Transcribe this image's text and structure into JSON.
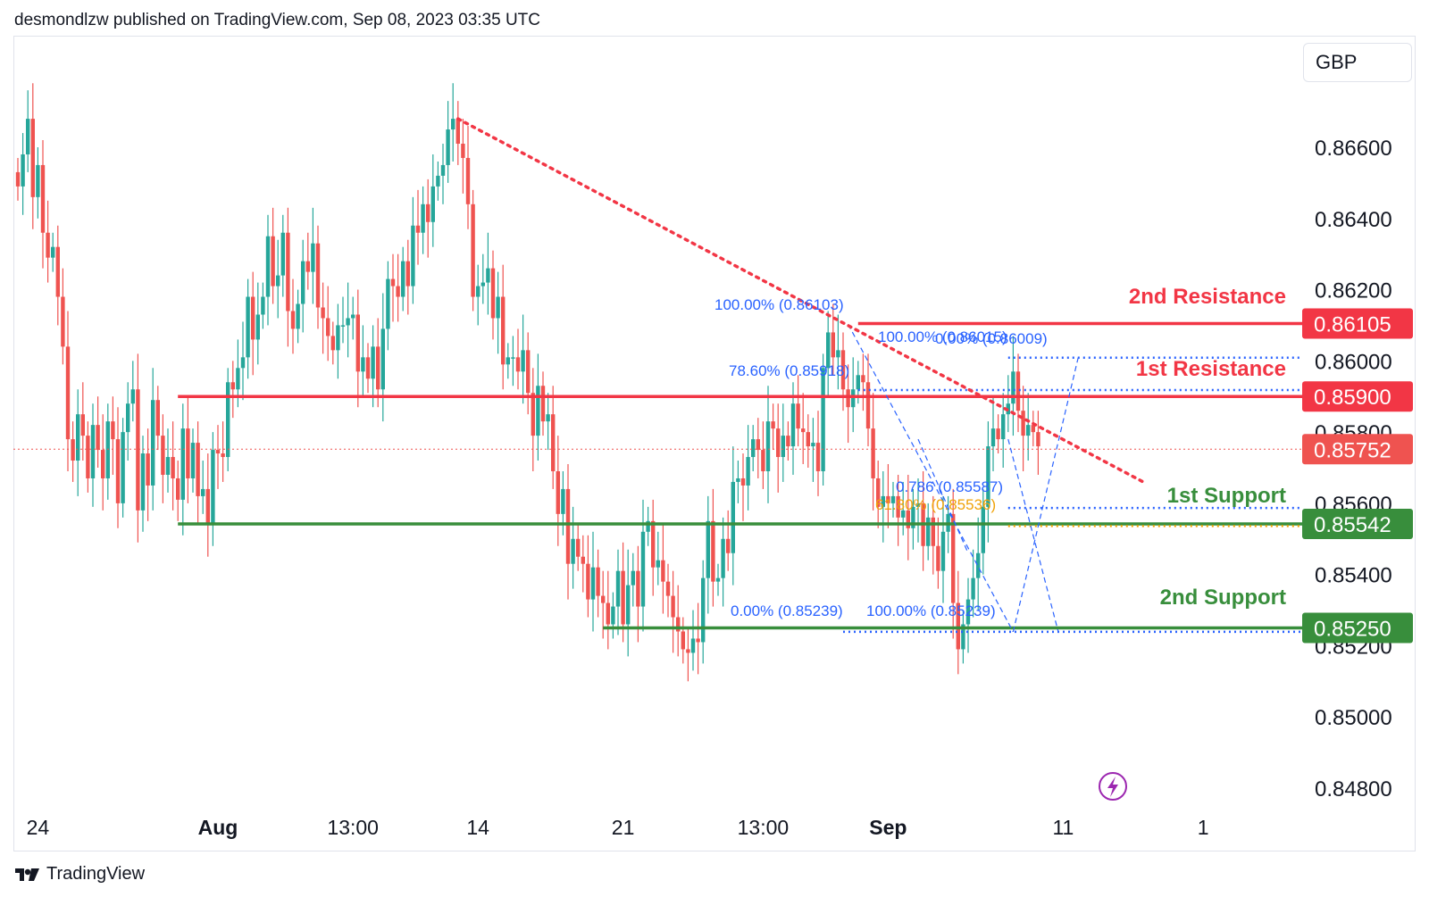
{
  "publisher": "desmondlzw published on TradingView.com, Sep 08, 2023 03:35 UTC",
  "currency": "GBP",
  "brand": "TradingView",
  "colors": {
    "up": "#26a69a",
    "down": "#ef5350",
    "resistance": "#f23645",
    "support": "#388e3c",
    "fib": "#2962ff",
    "fib_gold": "#f0a30a",
    "trend": "#f23645",
    "alert": "#9c27b0"
  },
  "chart_data": {
    "type": "candlestick",
    "title": "",
    "currency": "GBP",
    "ylim": [
      0.8473,
      0.8693
    ],
    "y_ticks": [
      "0.86600",
      "0.86400",
      "0.86200",
      "0.86000",
      "0.85800",
      "0.85600",
      "0.85400",
      "0.85200",
      "0.85000",
      "0.84800"
    ],
    "x_ticks": [
      {
        "label": "24",
        "bar": 4
      },
      {
        "label": "Aug",
        "bar": 40
      },
      {
        "label": "13:00",
        "bar": 67
      },
      {
        "label": "14",
        "bar": 92
      },
      {
        "label": "21",
        "bar": 121
      },
      {
        "label": "13:00",
        "bar": 149
      },
      {
        "label": "Sep",
        "bar": 174
      },
      {
        "label": "11",
        "bar": 209
      },
      {
        "label": "1",
        "bar": 237
      }
    ],
    "closes": [
      0.8649,
      0.8658,
      0.8668,
      0.8646,
      0.8655,
      0.8636,
      0.8629,
      0.8632,
      0.8618,
      0.8604,
      0.8578,
      0.8572,
      0.8585,
      0.8579,
      0.8567,
      0.8582,
      0.8575,
      0.8567,
      0.8583,
      0.8578,
      0.856,
      0.858,
      0.8588,
      0.8592,
      0.8558,
      0.8574,
      0.8565,
      0.8589,
      0.8579,
      0.8568,
      0.8573,
      0.8567,
      0.8561,
      0.8581,
      0.8567,
      0.8577,
      0.8562,
      0.8564,
      0.8554,
      0.8575,
      0.8574,
      0.8573,
      0.8594,
      0.8592,
      0.8598,
      0.8601,
      0.8618,
      0.8606,
      0.8613,
      0.8618,
      0.8635,
      0.8621,
      0.8624,
      0.8636,
      0.8614,
      0.8609,
      0.8616,
      0.8628,
      0.8625,
      0.8633,
      0.8615,
      0.8612,
      0.8607,
      0.8603,
      0.861,
      0.861,
      0.8612,
      0.8613,
      0.8597,
      0.8601,
      0.8595,
      0.8604,
      0.8592,
      0.8609,
      0.8623,
      0.8621,
      0.8618,
      0.8628,
      0.8621,
      0.8638,
      0.8636,
      0.8644,
      0.8639,
      0.8649,
      0.8652,
      0.8655,
      0.8665,
      0.8668,
      0.8661,
      0.8657,
      0.8644,
      0.8618,
      0.8621,
      0.8622,
      0.8626,
      0.8612,
      0.8618,
      0.8599,
      0.8601,
      0.8601,
      0.8597,
      0.8603,
      0.8591,
      0.8579,
      0.8593,
      0.8583,
      0.8585,
      0.8569,
      0.8557,
      0.8564,
      0.8543,
      0.855,
      0.8545,
      0.8543,
      0.8533,
      0.8542,
      0.8534,
      0.8532,
      0.8526,
      0.8531,
      0.8541,
      0.8526,
      0.8537,
      0.8541,
      0.8531,
      0.8552,
      0.8555,
      0.8542,
      0.8544,
      0.8538,
      0.8534,
      0.8528,
      0.8524,
      0.8519,
      0.8518,
      0.8522,
      0.8521,
      0.8539,
      0.8555,
      0.8538,
      0.8539,
      0.855,
      0.8546,
      0.8566,
      0.8567,
      0.8565,
      0.8573,
      0.8578,
      0.8575,
      0.8569,
      0.8583,
      0.8581,
      0.8573,
      0.8579,
      0.8576,
      0.8588,
      0.8581,
      0.858,
      0.8576,
      0.8577,
      0.8569,
      0.8598,
      0.8608,
      0.8601,
      0.8603,
      0.8592,
      0.8587,
      0.8592,
      0.8596,
      0.8594,
      0.8581,
      0.8567,
      0.8559,
      0.8562,
      0.856,
      0.8562,
      0.8556,
      0.8558,
      0.8553,
      0.8559,
      0.856,
      0.8548,
      0.8556,
      0.8548,
      0.8541,
      0.8552,
      0.8557,
      0.8532,
      0.8519,
      0.8526,
      0.8533,
      0.8539,
      0.8546,
      0.8559,
      0.8576,
      0.8581,
      0.8578,
      0.8585,
      0.8588,
      0.8597,
      0.8586,
      0.8579,
      0.8582,
      0.858,
      0.8576
    ]
  },
  "annotations": {
    "resistance_2": {
      "label": "2nd Resistance",
      "value": 0.86105,
      "badge": "0.86105"
    },
    "resistance_1": {
      "label": "1st Resistance",
      "value": 0.859,
      "badge": "0.85900"
    },
    "support_1": {
      "label": "1st Support",
      "value": 0.85542,
      "badge": "0.85542"
    },
    "support_2": {
      "label": "2nd Support",
      "value": 0.8525,
      "badge": "0.85250"
    },
    "last_price": {
      "value": 0.85752,
      "badge": "0.85752"
    },
    "trendline": {
      "start_bar": 88,
      "start_price": 0.8668,
      "end_bar": 225,
      "end_price": 0.8566
    },
    "fib_left": [
      {
        "label": "100.00% (0.86103)",
        "price": 0.86103
      },
      {
        "label": "78.60% (0.85918)",
        "price": 0.85918
      },
      {
        "label": "0.00% (0.85239)",
        "price": 0.85239
      }
    ],
    "fib_right": [
      {
        "label": "0.00% (0.86009)",
        "price": 0.86009
      },
      {
        "label": "100.00% (0.86015)",
        "price": 0.86015
      },
      {
        "label": "0.786 (0.85587)",
        "price": 0.85587
      },
      {
        "label": "61.80% (0.85536)",
        "price": 0.85536
      },
      {
        "label": "100.00% (0.85239)",
        "price": 0.85239
      }
    ]
  }
}
